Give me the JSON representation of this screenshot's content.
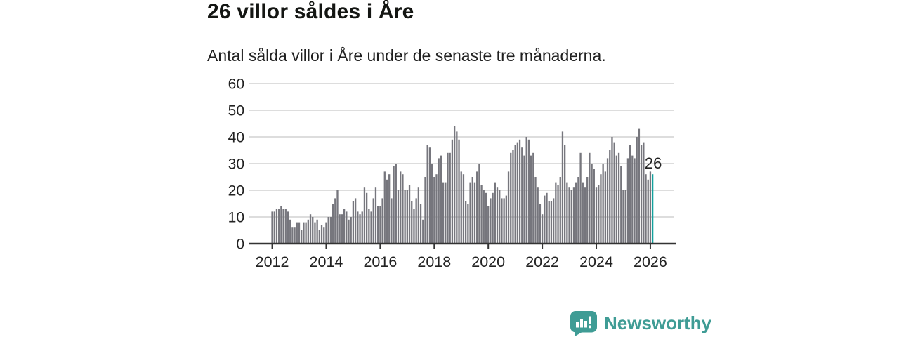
{
  "header": {
    "title": "26 villor såldes i Åre",
    "subtitle": "Antal sålda villor i Åre under de senaste tre månaderna."
  },
  "chart_data": {
    "type": "bar",
    "title": "26 villor såldes i Åre",
    "subtitle": "Antal sålda villor i Åre under de senaste tre månaderna.",
    "x_start": "2012-01",
    "x_end": "2026-02",
    "x_frequency": "monthly",
    "values": [
      12,
      12,
      13,
      13,
      14,
      13,
      13,
      12,
      9,
      6,
      6,
      8,
      8,
      5,
      8,
      8,
      9,
      11,
      10,
      8,
      9,
      5,
      7,
      6,
      8,
      10,
      10,
      15,
      17,
      20,
      11,
      11,
      13,
      12,
      9,
      10,
      16,
      17,
      12,
      11,
      12,
      21,
      19,
      13,
      12,
      17,
      21,
      14,
      14,
      17,
      27,
      24,
      26,
      17,
      29,
      30,
      20,
      27,
      26,
      20,
      20,
      22,
      16,
      13,
      17,
      21,
      15,
      9,
      25,
      37,
      36,
      30,
      25,
      26,
      32,
      33,
      23,
      23,
      34,
      34,
      39,
      44,
      42,
      39,
      27,
      26,
      16,
      15,
      23,
      25,
      23,
      27,
      30,
      22,
      20,
      19,
      14,
      17,
      19,
      23,
      21,
      20,
      17,
      17,
      18,
      27,
      34,
      35,
      37,
      38,
      39,
      36,
      33,
      40,
      39,
      33,
      34,
      25,
      21,
      15,
      11,
      18,
      19,
      16,
      16,
      17,
      23,
      22,
      25,
      42,
      37,
      23,
      21,
      20,
      21,
      23,
      25,
      34,
      23,
      21,
      25,
      34,
      30,
      28,
      21,
      22,
      26,
      30,
      27,
      32,
      35,
      40,
      38,
      33,
      34,
      29,
      20,
      20,
      32,
      37,
      33,
      32,
      40,
      43,
      37,
      38,
      26,
      24,
      27,
      26
    ],
    "highlight": {
      "index": 169,
      "value": 26,
      "label": "26"
    },
    "ylim": [
      0,
      60
    ],
    "yticks": [
      0,
      10,
      20,
      30,
      40,
      50,
      60
    ],
    "xticks": [
      "2012",
      "2014",
      "2016",
      "2018",
      "2020",
      "2022",
      "2024",
      "2026"
    ],
    "grid": true,
    "legend": "none",
    "colors": {
      "bar": "#76767d",
      "highlight": "#12a19e",
      "grid": "#d8d8d8",
      "axis": "#333333",
      "tick_text": "#222222",
      "label_text": "#222222"
    }
  },
  "footer": {
    "brand": "Newsworthy",
    "logo_icon": "newsworthy-speech-bubble-chart-icon",
    "brand_color": "#3f9c95"
  }
}
